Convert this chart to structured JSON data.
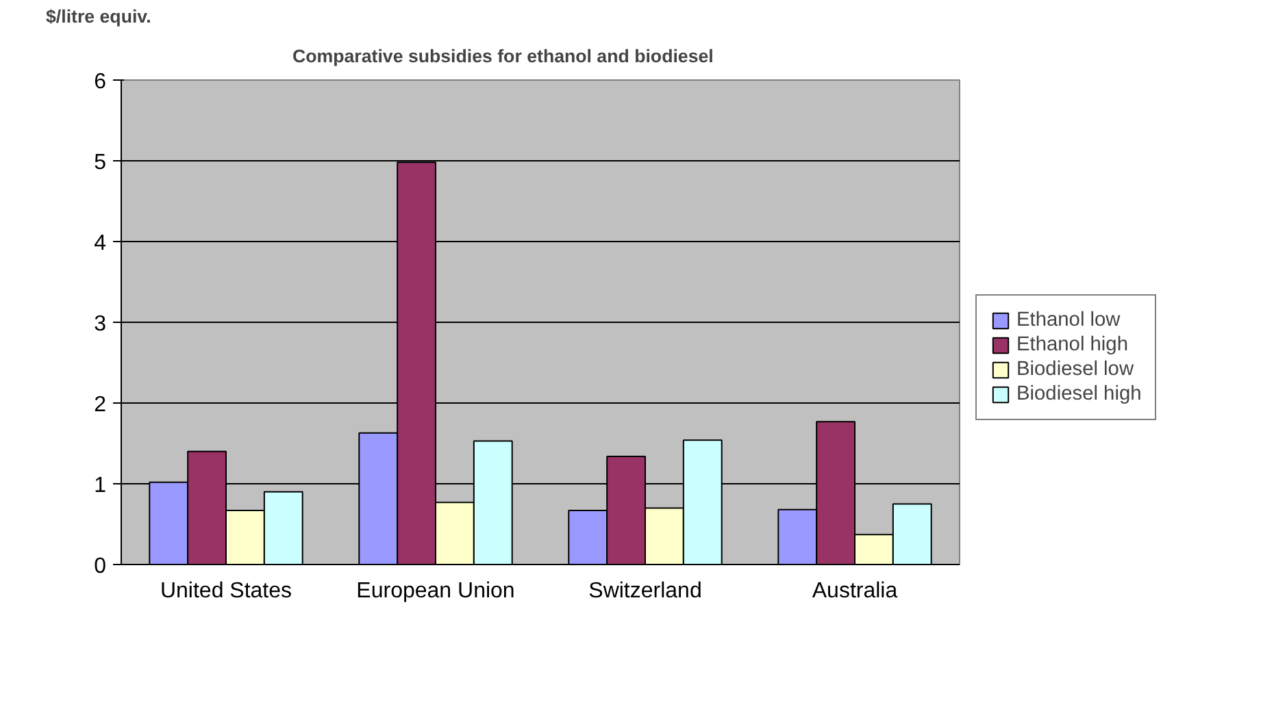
{
  "chart_data": {
    "type": "bar",
    "title": "Comparative subsidies for ethanol and biodiesel",
    "ylabel": "$/litre equiv.",
    "categories": [
      "United States",
      "European Union",
      "Switzerland",
      "Australia"
    ],
    "series": [
      {
        "name": "Ethanol low",
        "color": "#9999ff",
        "values": [
          1.02,
          1.63,
          0.67,
          0.68
        ]
      },
      {
        "name": "Ethanol high",
        "color": "#993366",
        "values": [
          1.4,
          4.98,
          1.34,
          1.77
        ]
      },
      {
        "name": "Biodiesel low",
        "color": "#ffffcc",
        "values": [
          0.67,
          0.77,
          0.7,
          0.37
        ]
      },
      {
        "name": "Biodiesel high",
        "color": "#ccffff",
        "values": [
          0.9,
          1.53,
          1.54,
          0.75
        ]
      }
    ],
    "ylim": [
      0,
      6
    ],
    "yticks": [
      0,
      1,
      2,
      3,
      4,
      5,
      6
    ],
    "grid": "y",
    "legend": "right"
  }
}
